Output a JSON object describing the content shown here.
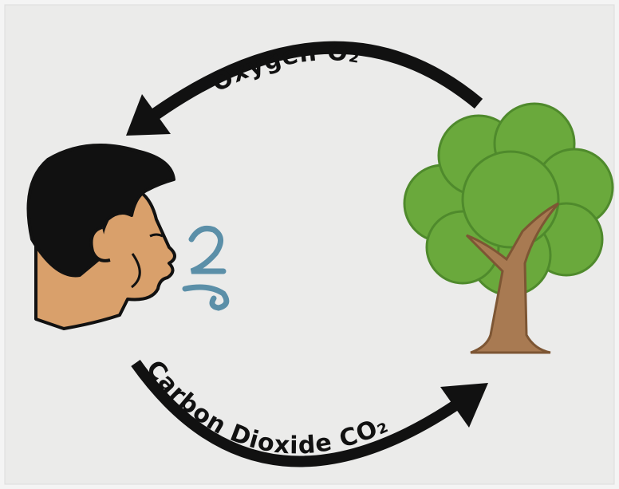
{
  "labels": {
    "oxygen": "Oxygen O₂",
    "carbon_dioxide": "Carbon Dioxide CO₂"
  }
}
